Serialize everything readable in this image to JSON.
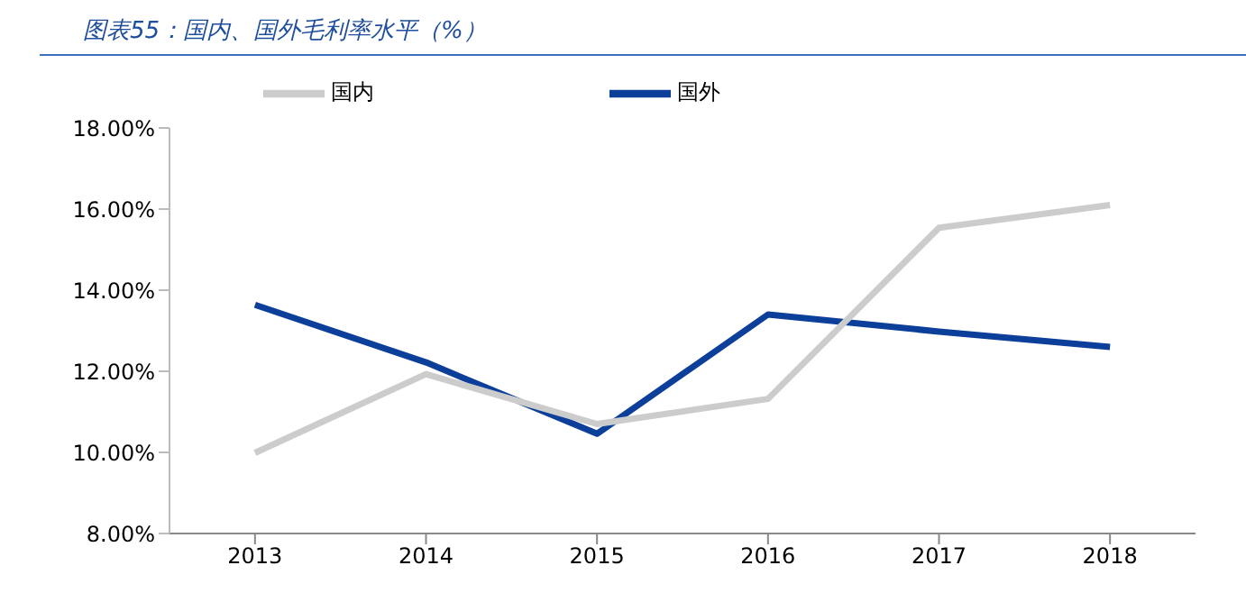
{
  "chart_data": {
    "type": "line",
    "title": "图表55：国内、国外毛利率水平（%）",
    "categories": [
      "2013",
      "2014",
      "2015",
      "2016",
      "2017",
      "2018"
    ],
    "series": [
      {
        "name": "国外",
        "color": "#0b3f99",
        "values": [
          13.64,
          12.22,
          10.46,
          13.4,
          12.98,
          12.6
        ]
      },
      {
        "name": "国内",
        "color": "#cccccc",
        "values": [
          9.99,
          11.93,
          10.7,
          11.32,
          15.54,
          16.1
        ]
      }
    ],
    "ylim": [
      8,
      18
    ],
    "yticks": [
      {
        "value": 8,
        "label": "8.00%"
      },
      {
        "value": 10,
        "label": "10.00%"
      },
      {
        "value": 12,
        "label": "12.00%"
      },
      {
        "value": 14,
        "label": "14.00%"
      },
      {
        "value": 16,
        "label": "16.00%"
      },
      {
        "value": 18,
        "label": "18.00%"
      }
    ],
    "grid": false,
    "legend": "top",
    "marker": "none",
    "line_style": "solid"
  }
}
